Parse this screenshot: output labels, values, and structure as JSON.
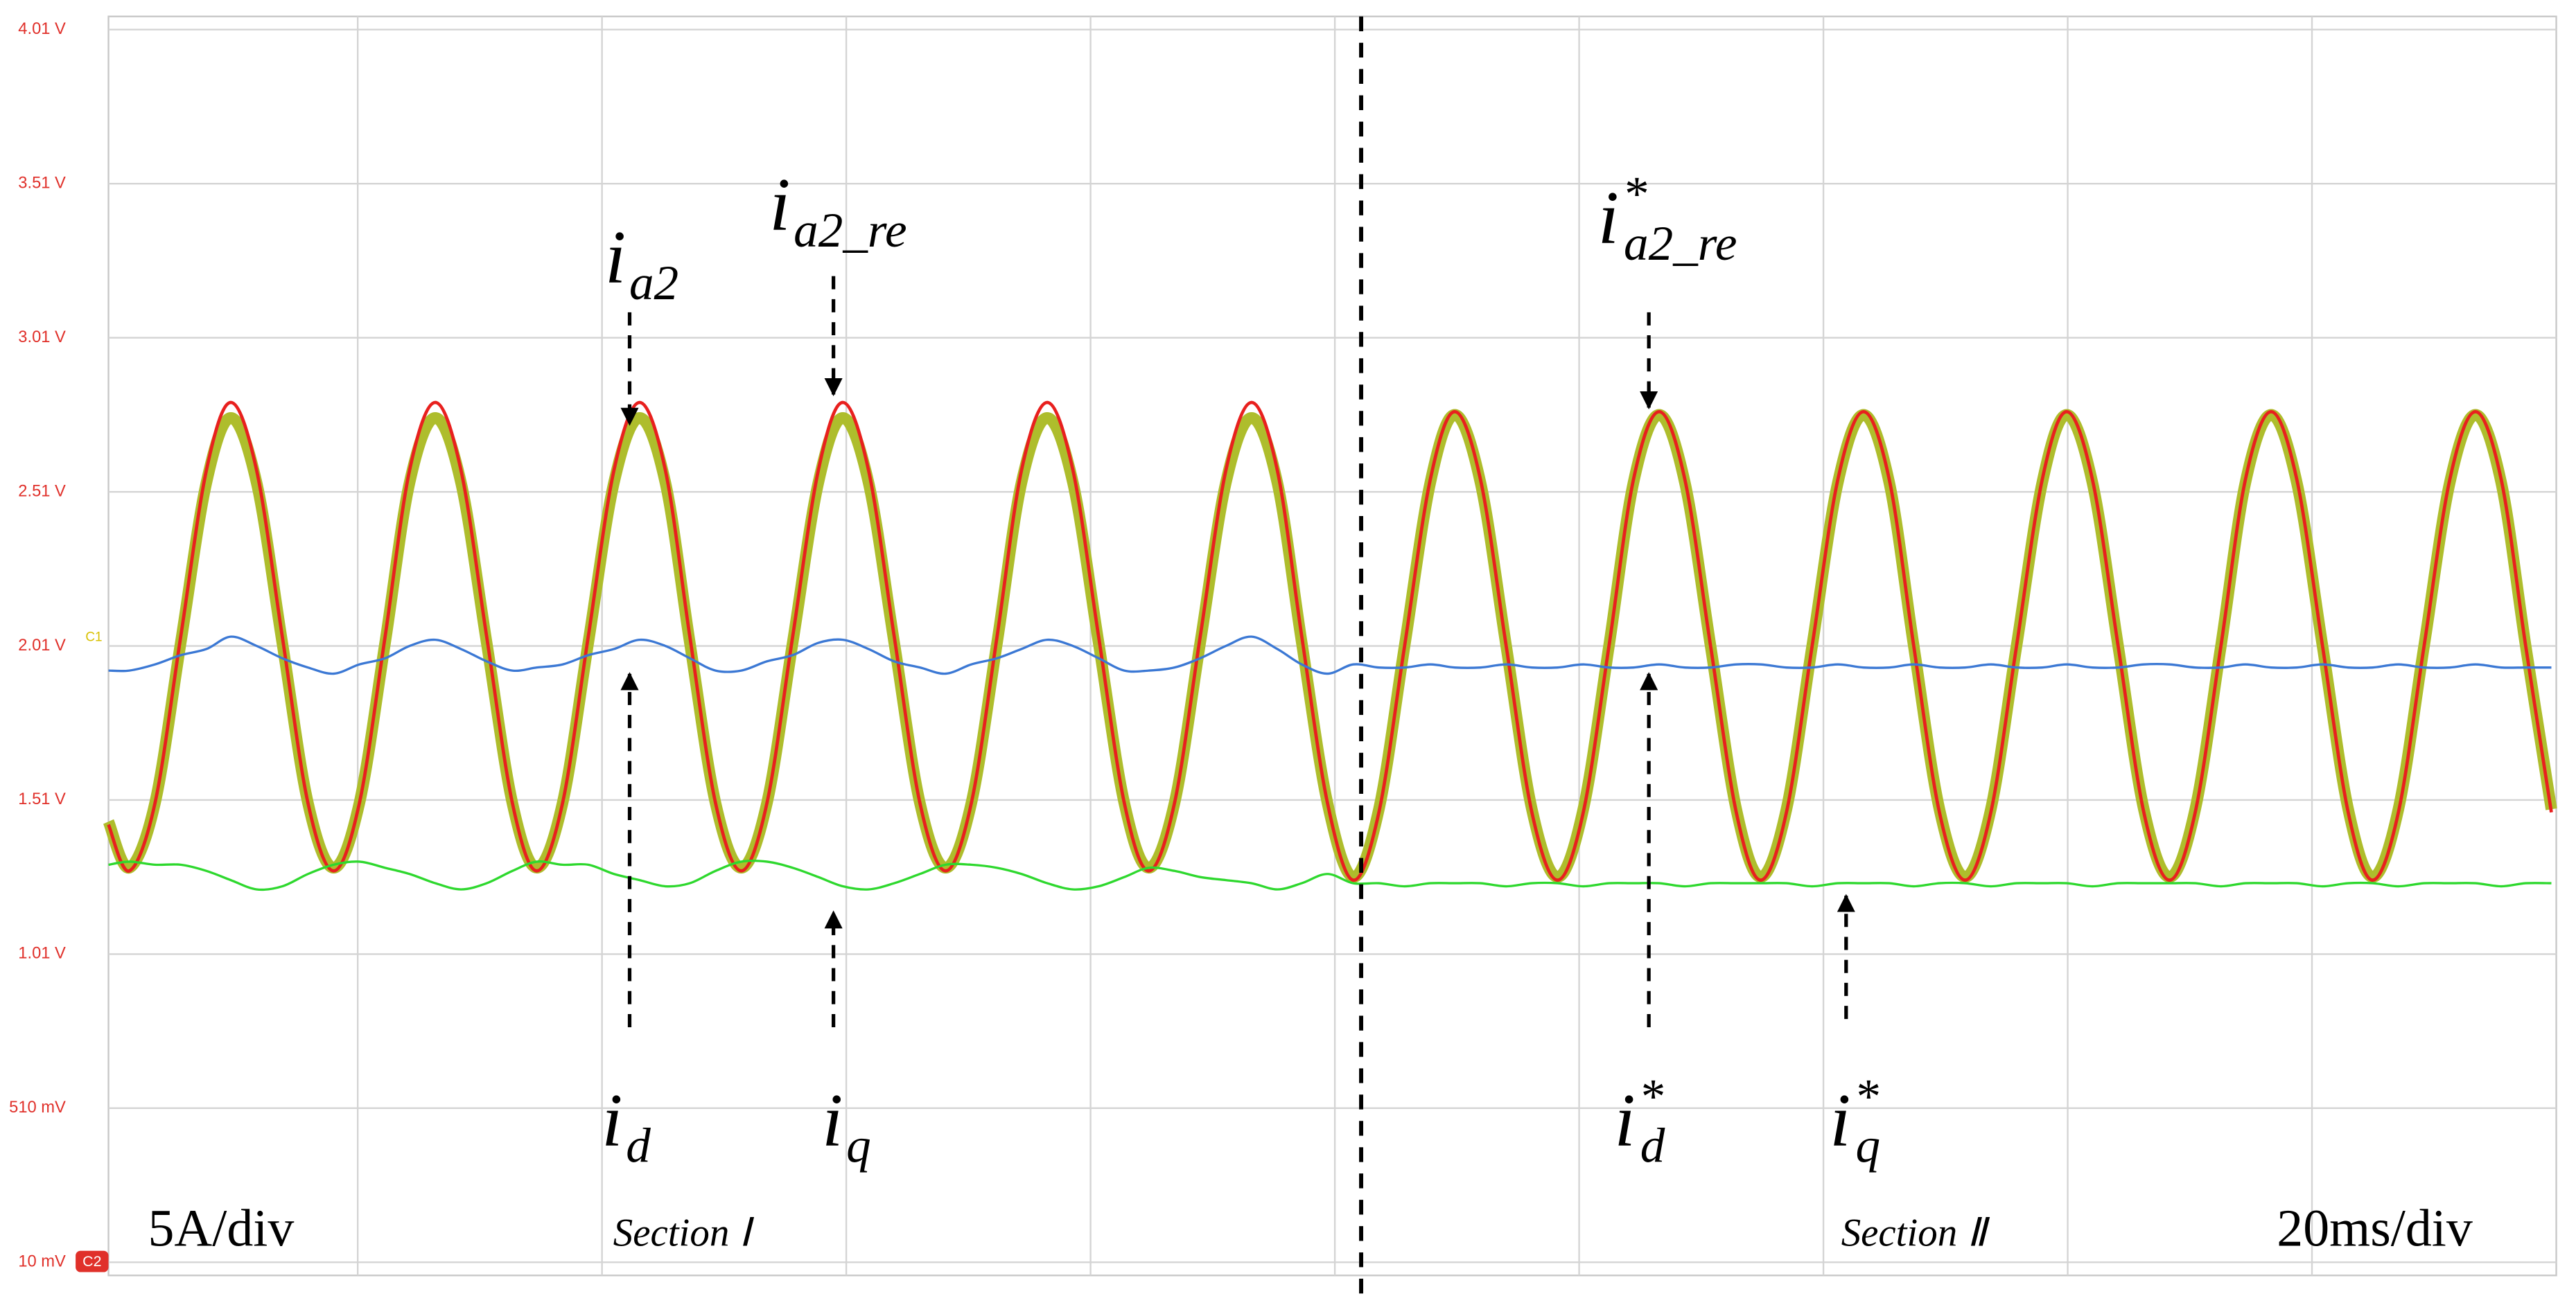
{
  "chart_data": {
    "type": "line",
    "x": [
      0.0,
      1.7,
      3.8,
      5.9,
      8.0,
      10.0,
      12.1,
      14.2,
      16.3,
      18.4,
      20.5,
      22.6,
      24.6,
      26.7,
      28.8,
      30.9,
      33.0,
      35.0,
      37.1,
      39.2,
      41.3,
      43.4,
      45.5,
      47.5,
      49.6,
      51.7,
      53.8,
      55.9,
      58.0,
      60.0,
      62.1,
      64.2,
      66.3,
      68.4,
      70.5,
      72.6,
      74.6,
      76.7,
      78.8,
      80.9,
      83.0,
      85.0,
      87.1,
      89.2,
      91.3,
      93.4,
      95.5,
      97.5,
      99.6,
      101.7,
      103.8,
      105.9,
      108.0,
      110.0,
      112.1,
      114.2,
      116.3,
      118.4,
      120.5,
      122.6,
      124.6,
      126.7,
      128.8,
      130.9,
      133.0,
      135.0,
      137.1,
      139.2,
      141.3,
      143.4,
      145.5,
      147.5,
      149.6,
      151.7,
      153.8,
      155.9,
      158.0,
      160.0,
      162.1,
      164.2,
      166.3,
      168.4,
      170.5,
      172.6,
      174.6,
      176.7,
      178.8,
      180.9,
      183.0,
      185.0,
      187.1,
      189.2,
      191.3,
      193.4,
      195.5,
      197.5,
      199.6
    ],
    "xlim": [
      0,
      200
    ],
    "ylim": [
      0.01,
      4.01
    ],
    "yticks": [
      {
        "value": 4.01,
        "label": "4.01 V"
      },
      {
        "value": 3.51,
        "label": "3.51 V"
      },
      {
        "value": 3.01,
        "label": "3.01 V"
      },
      {
        "value": 2.51,
        "label": "2.51 V"
      },
      {
        "value": 2.01,
        "label": "2.01 V"
      },
      {
        "value": 1.51,
        "label": "1.51 V"
      },
      {
        "value": 1.01,
        "label": "1.01 V"
      },
      {
        "value": 0.51,
        "label": "510 mV"
      },
      {
        "value": 0.01,
        "label": "10 mV"
      }
    ],
    "grid": true,
    "series": [
      {
        "color": "#aebd2c",
        "values": [
          1.44,
          1.29,
          1.5,
          2.02,
          2.54,
          2.75,
          2.54,
          2.02,
          1.5,
          1.29,
          1.5,
          2.02,
          2.54,
          2.75,
          2.54,
          2.02,
          1.5,
          1.29,
          1.5,
          2.02,
          2.54,
          2.75,
          2.54,
          2.02,
          1.5,
          1.29,
          1.5,
          2.02,
          2.54,
          2.75,
          2.54,
          2.02,
          1.5,
          1.29,
          1.5,
          2.02,
          2.54,
          2.75,
          2.54,
          2.02,
          1.5,
          1.29,
          1.5,
          2.02,
          2.54,
          2.75,
          2.54,
          2.02,
          1.5,
          1.26,
          1.48,
          2.01,
          2.54,
          2.76,
          2.54,
          2.01,
          1.48,
          1.26,
          1.48,
          2.01,
          2.54,
          2.76,
          2.54,
          2.01,
          1.48,
          1.26,
          1.48,
          2.01,
          2.54,
          2.76,
          2.54,
          2.01,
          1.48,
          1.26,
          1.48,
          2.01,
          2.54,
          2.76,
          2.54,
          2.01,
          1.48,
          1.26,
          1.48,
          2.01,
          2.54,
          2.76,
          2.54,
          2.01,
          1.48,
          1.26,
          1.48,
          2.01,
          2.54,
          2.76,
          2.54,
          2.01,
          1.48
        ]
      },
      {
        "color": "#e8201e",
        "values": [
          1.43,
          1.28,
          1.5,
          2.04,
          2.58,
          2.8,
          2.58,
          2.04,
          1.5,
          1.28,
          1.5,
          2.04,
          2.58,
          2.8,
          2.58,
          2.04,
          1.5,
          1.28,
          1.5,
          2.04,
          2.58,
          2.8,
          2.58,
          2.04,
          1.5,
          1.28,
          1.5,
          2.04,
          2.58,
          2.8,
          2.58,
          2.04,
          1.5,
          1.28,
          1.5,
          2.04,
          2.58,
          2.8,
          2.58,
          2.04,
          1.5,
          1.28,
          1.5,
          2.04,
          2.58,
          2.8,
          2.58,
          2.04,
          1.5,
          1.25,
          1.47,
          2.01,
          2.55,
          2.77,
          2.55,
          2.01,
          1.47,
          1.25,
          1.47,
          2.01,
          2.55,
          2.77,
          2.55,
          2.01,
          1.47,
          1.25,
          1.47,
          2.01,
          2.55,
          2.77,
          2.55,
          2.01,
          1.47,
          1.25,
          1.47,
          2.01,
          2.55,
          2.77,
          2.55,
          2.01,
          1.47,
          1.25,
          1.47,
          2.01,
          2.55,
          2.77,
          2.55,
          2.01,
          1.47,
          1.25,
          1.47,
          2.01,
          2.55,
          2.77,
          2.55,
          2.01,
          1.47
        ]
      },
      {
        "color": "#3b78d4",
        "values": [
          1.93,
          1.93,
          1.95,
          1.98,
          2.0,
          2.04,
          2.01,
          1.97,
          1.94,
          1.92,
          1.95,
          1.97,
          2.01,
          2.03,
          2.0,
          1.96,
          1.93,
          1.94,
          1.95,
          1.98,
          2.0,
          2.03,
          2.01,
          1.97,
          1.93,
          1.93,
          1.96,
          1.98,
          2.02,
          2.03,
          2.0,
          1.96,
          1.94,
          1.92,
          1.95,
          1.97,
          2.0,
          2.03,
          2.01,
          1.97,
          1.93,
          1.93,
          1.94,
          1.97,
          2.01,
          2.04,
          2.0,
          1.95,
          1.92,
          1.95,
          1.94,
          1.94,
          1.95,
          1.94,
          1.94,
          1.95,
          1.94,
          1.94,
          1.95,
          1.94,
          1.94,
          1.95,
          1.94,
          1.94,
          1.95,
          1.95,
          1.94,
          1.94,
          1.95,
          1.94,
          1.94,
          1.95,
          1.94,
          1.94,
          1.95,
          1.94,
          1.94,
          1.95,
          1.94,
          1.94,
          1.95,
          1.95,
          1.94,
          1.94,
          1.95,
          1.94,
          1.94,
          1.95,
          1.94,
          1.94,
          1.95,
          1.94,
          1.94,
          1.95,
          1.94,
          1.94,
          1.94
        ]
      },
      {
        "color": "#2ed82e",
        "values": [
          1.3,
          1.31,
          1.3,
          1.3,
          1.28,
          1.25,
          1.22,
          1.23,
          1.27,
          1.3,
          1.31,
          1.29,
          1.27,
          1.24,
          1.22,
          1.24,
          1.28,
          1.31,
          1.3,
          1.3,
          1.27,
          1.25,
          1.23,
          1.24,
          1.28,
          1.31,
          1.31,
          1.29,
          1.26,
          1.23,
          1.22,
          1.24,
          1.27,
          1.3,
          1.3,
          1.29,
          1.27,
          1.24,
          1.22,
          1.23,
          1.26,
          1.29,
          1.28,
          1.26,
          1.25,
          1.24,
          1.22,
          1.24,
          1.27,
          1.24,
          1.24,
          1.23,
          1.24,
          1.24,
          1.24,
          1.23,
          1.24,
          1.24,
          1.23,
          1.24,
          1.24,
          1.24,
          1.23,
          1.24,
          1.24,
          1.24,
          1.24,
          1.23,
          1.24,
          1.24,
          1.24,
          1.23,
          1.24,
          1.24,
          1.23,
          1.24,
          1.24,
          1.24,
          1.23,
          1.24,
          1.24,
          1.24,
          1.24,
          1.23,
          1.24,
          1.24,
          1.24,
          1.23,
          1.24,
          1.24,
          1.23,
          1.24,
          1.24,
          1.24,
          1.23,
          1.24,
          1.24
        ]
      }
    ],
    "annotations": [
      {
        "base": "i",
        "sub": "a2"
      },
      {
        "base": "i",
        "sub": "a2_re"
      },
      {
        "base": "i",
        "sup": "*",
        "sub": "a2_re"
      },
      {
        "base": "i",
        "sub": "d"
      },
      {
        "base": "i",
        "sub": "q"
      },
      {
        "base": "i",
        "sup": "*",
        "sub": "d"
      },
      {
        "base": "i",
        "sup": "*",
        "sub": "q"
      }
    ],
    "scale_labels": [
      "5A/div",
      "20ms/div"
    ],
    "sections": [
      "Section Ⅰ",
      "Section Ⅱ"
    ],
    "channel_markers": [
      "C1",
      "C2"
    ]
  }
}
